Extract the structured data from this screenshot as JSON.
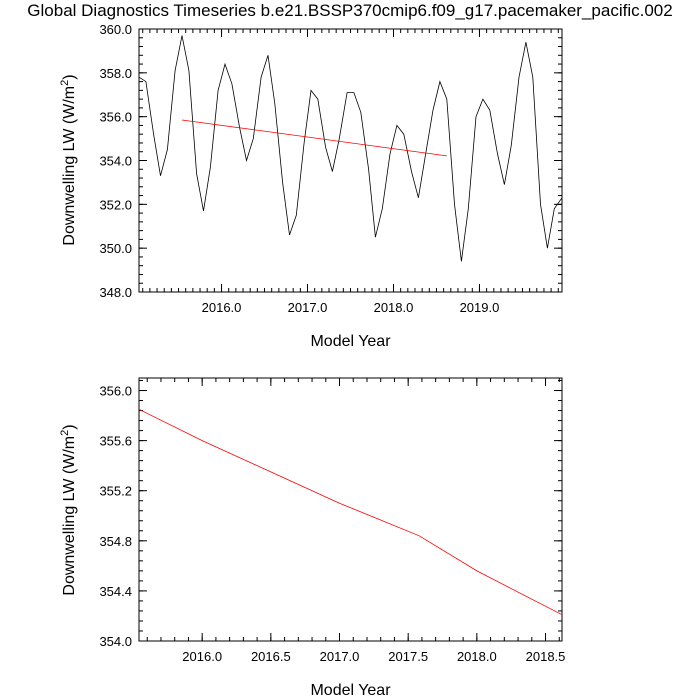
{
  "title": "Global Diagnostics Timeseries b.e21.BSSP370cmip6.f09_g17.pacemaker_pacific.002",
  "chart_data": [
    {
      "type": "line",
      "xlabel": "Model Year",
      "ylabel_main": "Downwelling LW (W/m",
      "ylabel_sup": "2",
      "ylabel_close": ")",
      "xlim": [
        2015.04,
        2019.96
      ],
      "ylim": [
        348.0,
        360.0
      ],
      "xticks": [
        2016.0,
        2017.0,
        2018.0,
        2019.0
      ],
      "xtick_labels": [
        "2016.0",
        "2017.0",
        "2018.0",
        "2019.0"
      ],
      "yticks": [
        348.0,
        350.0,
        352.0,
        354.0,
        356.0,
        358.0,
        360.0
      ],
      "ytick_labels": [
        "348.0",
        "350.0",
        "352.0",
        "354.0",
        "356.0",
        "358.0",
        "360.0"
      ],
      "series": [
        {
          "color": "#000000",
          "x": [
            2015.04,
            2015.12,
            2015.21,
            2015.29,
            2015.37,
            2015.46,
            2015.54,
            2015.62,
            2015.71,
            2015.79,
            2015.87,
            2015.96,
            2016.04,
            2016.12,
            2016.21,
            2016.29,
            2016.37,
            2016.46,
            2016.54,
            2016.62,
            2016.71,
            2016.79,
            2016.87,
            2016.96,
            2017.04,
            2017.12,
            2017.21,
            2017.29,
            2017.37,
            2017.46,
            2017.54,
            2017.62,
            2017.71,
            2017.79,
            2017.87,
            2017.96,
            2018.04,
            2018.12,
            2018.21,
            2018.29,
            2018.37,
            2018.46,
            2018.54,
            2018.62,
            2018.71,
            2018.79,
            2018.87,
            2018.96,
            2019.04,
            2019.12,
            2019.21,
            2019.29,
            2019.37,
            2019.46,
            2019.54,
            2019.62,
            2019.71,
            2019.79,
            2019.87,
            2019.96
          ],
          "y": [
            357.8,
            357.6,
            355.2,
            353.3,
            354.5,
            358.1,
            359.7,
            358.1,
            353.4,
            351.7,
            353.7,
            357.2,
            358.4,
            357.5,
            355.5,
            354.0,
            355.0,
            357.8,
            358.8,
            356.6,
            353.0,
            350.6,
            351.5,
            354.8,
            357.2,
            356.8,
            354.6,
            353.5,
            355.0,
            357.1,
            357.1,
            356.2,
            353.6,
            350.5,
            351.8,
            354.3,
            355.6,
            355.2,
            353.5,
            352.3,
            354.2,
            356.3,
            357.6,
            356.8,
            352.0,
            349.4,
            351.8,
            356.0,
            356.8,
            356.3,
            354.3,
            352.9,
            354.7,
            357.8,
            359.4,
            357.8,
            352.0,
            350.0,
            351.8,
            352.3
          ]
        },
        {
          "color": "#ff0000",
          "x": [
            2015.54,
            2018.62
          ],
          "y": [
            355.85,
            354.21
          ]
        }
      ]
    },
    {
      "type": "line",
      "xlabel": "Model Year",
      "ylabel_main": "Downwelling LW (W/m",
      "ylabel_sup": "2",
      "ylabel_close": ")",
      "xlim": [
        2015.54,
        2018.62
      ],
      "ylim": [
        354.0,
        356.1
      ],
      "xticks": [
        2016.0,
        2016.5,
        2017.0,
        2017.5,
        2018.0,
        2018.5
      ],
      "xtick_labels": [
        "2016.0",
        "2016.5",
        "2017.0",
        "2017.5",
        "2018.0",
        "2018.5"
      ],
      "yticks": [
        354.0,
        354.4,
        354.8,
        355.2,
        355.6,
        356.0
      ],
      "ytick_labels": [
        "354.0",
        "354.4",
        "354.8",
        "355.2",
        "355.6",
        "356.0"
      ],
      "series": [
        {
          "color": "#ff0000",
          "x": [
            2015.54,
            2016.0,
            2016.5,
            2017.0,
            2017.58,
            2018.0,
            2018.62
          ],
          "y": [
            355.85,
            355.6,
            355.35,
            355.1,
            354.84,
            354.56,
            354.21
          ]
        }
      ]
    }
  ]
}
